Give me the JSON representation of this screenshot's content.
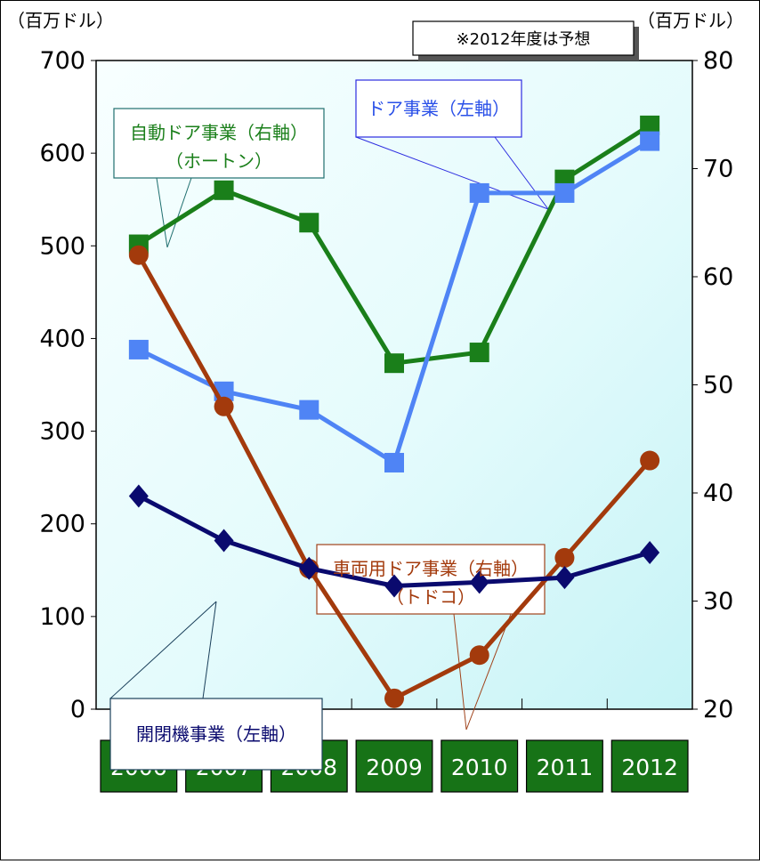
{
  "chart_data": {
    "type": "line",
    "categories": [
      "2006",
      "2007",
      "2008",
      "2009",
      "2010",
      "2011",
      "2012"
    ],
    "left_axis": {
      "unit_label": "（百万ドル）",
      "ylim": [
        0,
        700
      ],
      "ticks": [
        "0",
        "100",
        "200",
        "300",
        "400",
        "500",
        "600",
        "700"
      ]
    },
    "right_axis": {
      "unit_label": "（百万ドル）",
      "ylim": [
        20,
        80
      ],
      "ticks": [
        "20",
        "30",
        "40",
        "50",
        "60",
        "70",
        "80"
      ]
    },
    "note": "※2012年度は予想",
    "series": [
      {
        "name": "自動ドア事業（右軸）",
        "sub": "（ホートン）",
        "axis": "right",
        "color": "#1a7f1a",
        "marker": "square",
        "values": [
          63,
          68,
          65,
          52,
          53,
          69,
          74
        ]
      },
      {
        "name": "ドア事業（左軸）",
        "sub": "",
        "axis": "left",
        "color": "#4f84f5",
        "marker": "square",
        "values": [
          388,
          343,
          323,
          266,
          557,
          557,
          613
        ]
      },
      {
        "name": "車両用ドア事業（右軸）",
        "sub": "（トドコ）",
        "axis": "right",
        "color": "#a33a0c",
        "marker": "circle",
        "values": [
          62,
          48,
          33,
          21,
          25,
          34,
          43
        ]
      },
      {
        "name": "開閉機事業（左軸）",
        "sub": "",
        "axis": "left",
        "color": "#0a0a6e",
        "marker": "diamond",
        "values": [
          230,
          182,
          152,
          133,
          137,
          142,
          169
        ]
      }
    ]
  }
}
